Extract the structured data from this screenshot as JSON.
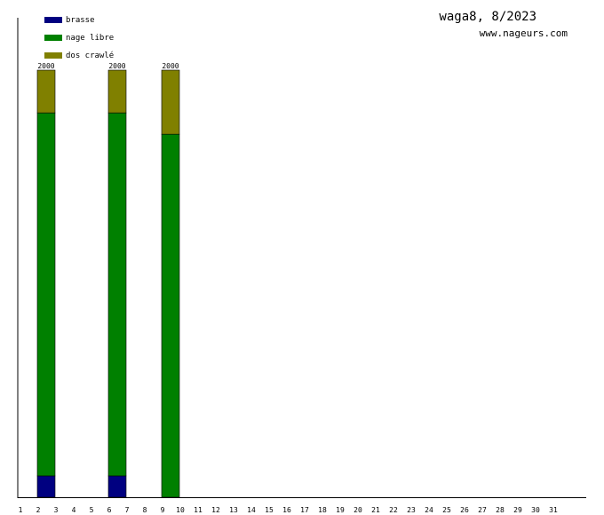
{
  "chart_data": {
    "type": "bar",
    "stacked": true,
    "title": "waga8, 8/2023",
    "subtitle": "www.nageurs.com",
    "x": [
      "1",
      "2",
      "3",
      "4",
      "5",
      "6",
      "7",
      "8",
      "9",
      "10",
      "11",
      "12",
      "13",
      "14",
      "15",
      "16",
      "17",
      "18",
      "19",
      "20",
      "21",
      "22",
      "23",
      "24",
      "25",
      "26",
      "27",
      "28",
      "29",
      "30",
      "31"
    ],
    "series": [
      {
        "name": "brasse",
        "color": "#000080",
        "values": [
          0,
          100,
          0,
          0,
          0,
          100,
          0,
          0,
          0,
          0,
          0,
          0,
          0,
          0,
          0,
          0,
          0,
          0,
          0,
          0,
          0,
          0,
          0,
          0,
          0,
          0,
          0,
          0,
          0,
          0,
          0
        ]
      },
      {
        "name": "nage libre",
        "color": "#008000",
        "values": [
          0,
          1700,
          0,
          0,
          0,
          1700,
          0,
          0,
          1700,
          0,
          0,
          0,
          0,
          0,
          0,
          0,
          0,
          0,
          0,
          0,
          0,
          0,
          0,
          0,
          0,
          0,
          0,
          0,
          0,
          0,
          0
        ]
      },
      {
        "name": "dos crawlé",
        "color": "#808000",
        "values": [
          0,
          200,
          0,
          0,
          0,
          200,
          0,
          0,
          300,
          0,
          0,
          0,
          0,
          0,
          0,
          0,
          0,
          0,
          0,
          0,
          0,
          0,
          0,
          0,
          0,
          0,
          0,
          0,
          0,
          0,
          0
        ]
      }
    ],
    "totals": [
      "",
      "2000",
      "",
      "",
      "",
      "2000",
      "",
      "",
      "2000",
      "",
      "",
      "",
      "",
      "",
      "",
      "",
      "",
      "",
      "",
      "",
      "",
      "",
      "",
      "",
      "",
      "",
      "",
      "",
      "",
      "",
      ""
    ],
    "ylim": [
      0,
      2000
    ],
    "grid": false,
    "legend": "top-left"
  }
}
